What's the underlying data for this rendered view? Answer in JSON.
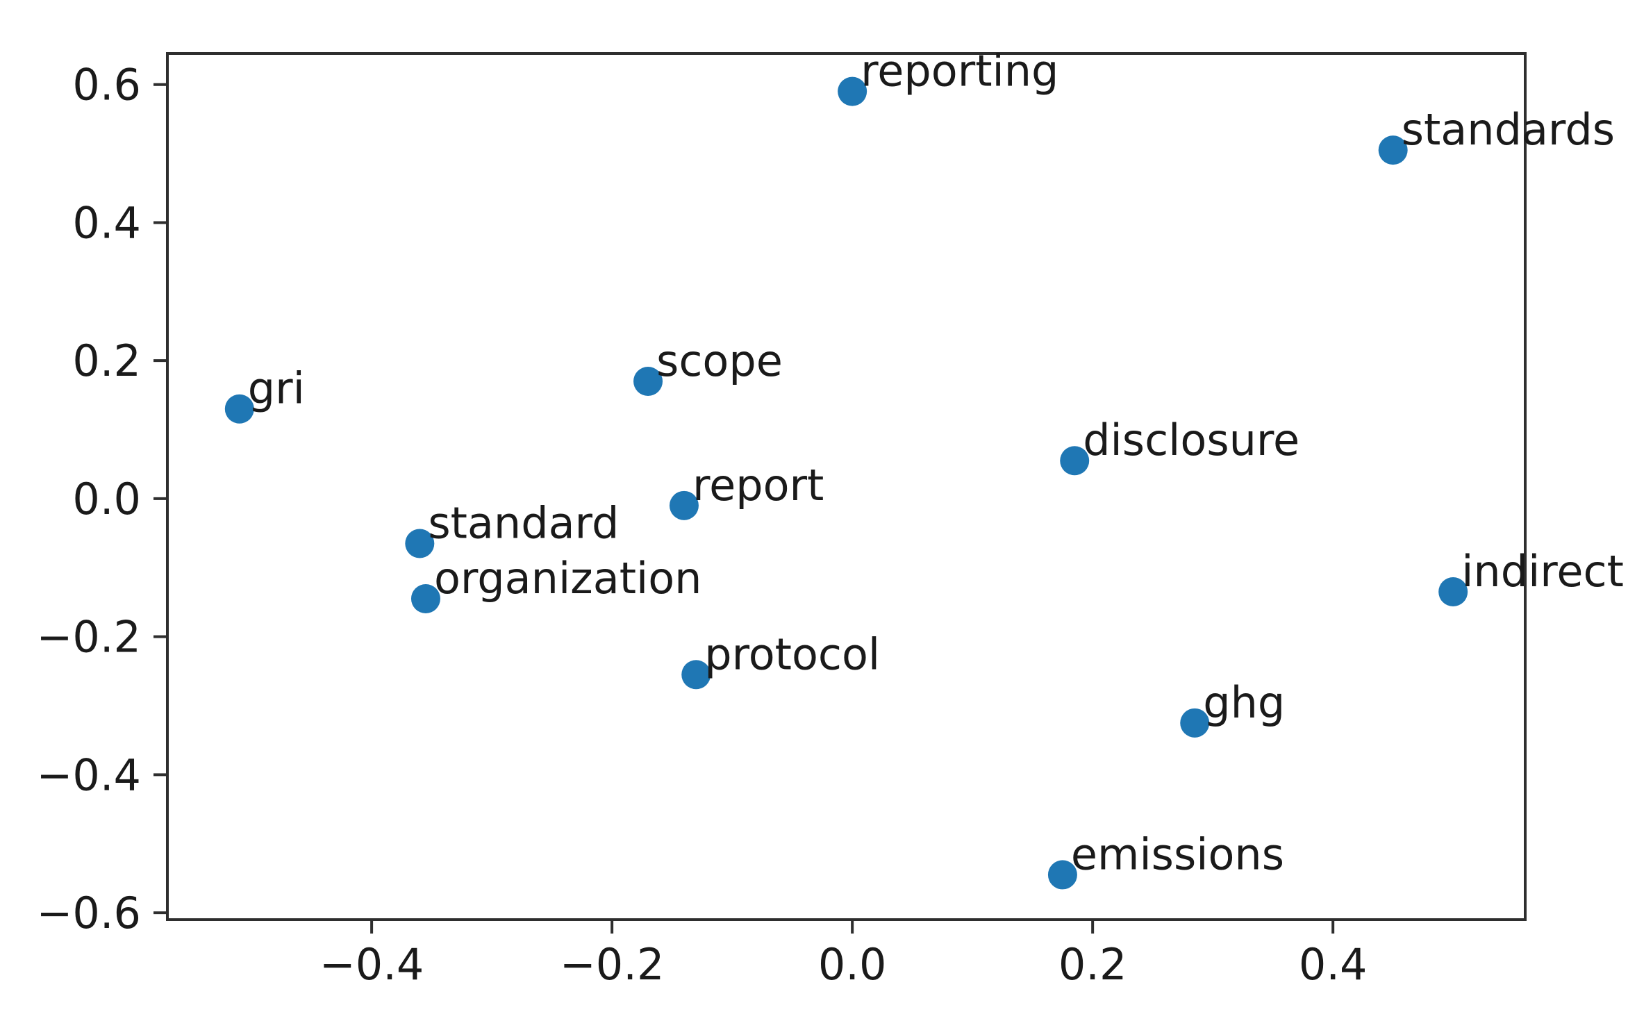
{
  "figure": {
    "background": "#ffffff",
    "marker_color": "#1f77b4",
    "axis_color": "#2e2e2e",
    "tick_label_color": "#1a1a1a",
    "annotation_color": "#1a1a1a"
  },
  "chart_data": {
    "type": "scatter",
    "title": "",
    "xlabel": "",
    "ylabel": "",
    "grid": false,
    "legend_position": "none",
    "xlim": [
      -0.57,
      0.56
    ],
    "ylim": [
      -0.61,
      0.645
    ],
    "xticks": {
      "values": [
        -0.4,
        -0.2,
        0.0,
        0.2,
        0.4
      ],
      "labels": [
        "−0.4",
        "−0.2",
        "0.0",
        "0.2",
        "0.4"
      ]
    },
    "yticks": {
      "values": [
        0.6,
        0.4,
        0.2,
        0.0,
        -0.2,
        -0.4,
        -0.6
      ],
      "labels": [
        "0.6",
        "0.4",
        "0.2",
        "0.0",
        "−0.2",
        "−0.4",
        "−0.6"
      ]
    },
    "points": [
      {
        "label": "reporting",
        "x": 0.0,
        "y": 0.59
      },
      {
        "label": "standards",
        "x": 0.45,
        "y": 0.505
      },
      {
        "label": "gri",
        "x": -0.51,
        "y": 0.13
      },
      {
        "label": "scope",
        "x": -0.17,
        "y": 0.17
      },
      {
        "label": "disclosure",
        "x": 0.185,
        "y": 0.055
      },
      {
        "label": "report",
        "x": -0.14,
        "y": -0.01
      },
      {
        "label": "standard",
        "x": -0.36,
        "y": -0.065
      },
      {
        "label": "organization",
        "x": -0.355,
        "y": -0.145
      },
      {
        "label": "indirect",
        "x": 0.5,
        "y": -0.135
      },
      {
        "label": "protocol",
        "x": -0.13,
        "y": -0.255
      },
      {
        "label": "ghg",
        "x": 0.285,
        "y": -0.325
      },
      {
        "label": "emissions",
        "x": 0.175,
        "y": -0.545
      }
    ]
  }
}
